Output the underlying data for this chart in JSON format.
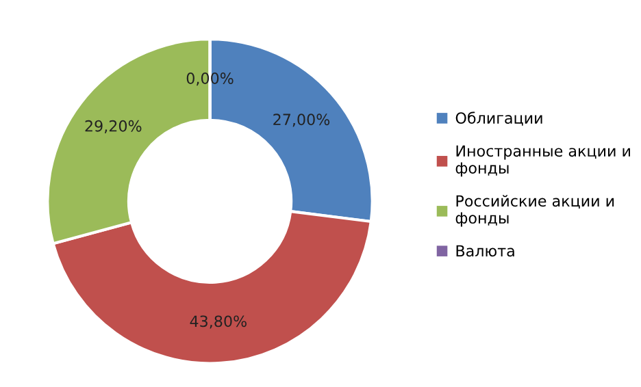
{
  "chart_data": {
    "type": "donut",
    "categories": [
      "Облигации",
      "Иностранные акции и фонды",
      "Российские акции и фонды",
      "Валюта"
    ],
    "values": [
      27.0,
      43.8,
      29.2,
      0.0
    ],
    "colors": [
      "#4f81bd",
      "#c0504d",
      "#9bbb59",
      "#8064a2"
    ],
    "value_labels": [
      "27,00%",
      "43,80%",
      "29,20%",
      "0,00%"
    ],
    "legend": "right"
  }
}
